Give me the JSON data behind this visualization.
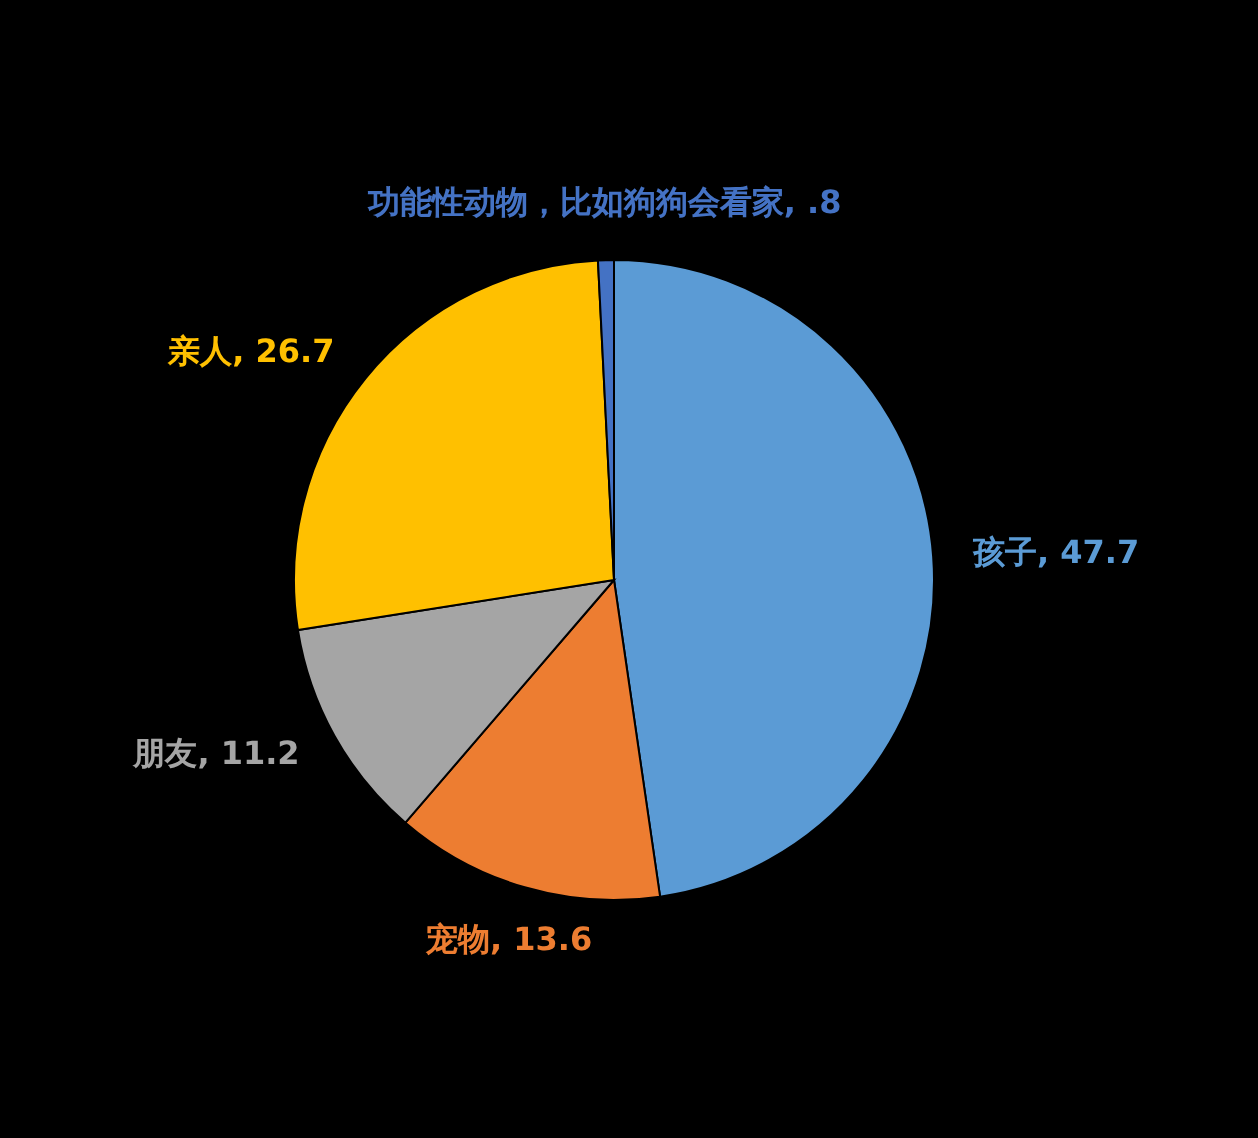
{
  "chart_data": {
    "type": "pie",
    "categories": [
      "孩子",
      "宠物",
      "朋友",
      "亲人",
      "功能性动物，比如狗狗会看家"
    ],
    "values": [
      47.7,
      13.6,
      11.2,
      26.7,
      0.8
    ],
    "value_labels": [
      "47.7",
      "13.6",
      "11.2",
      "26.7",
      ".8"
    ],
    "colors": [
      "#5b9bd5",
      "#ed7d31",
      "#a5a5a5",
      "#ffc000",
      "#4472c4"
    ],
    "legend": false
  }
}
